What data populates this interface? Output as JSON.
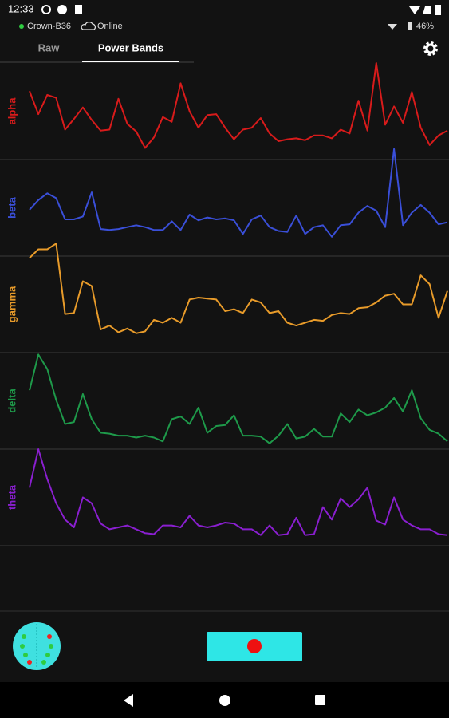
{
  "status_bar": {
    "time": "12:33",
    "battery": "46%"
  },
  "device": {
    "name": "Crown-B36",
    "status": "Online"
  },
  "tabs": [
    "Raw",
    "Power Bands"
  ],
  "ylim": [
    0,
    100
  ],
  "bands": [
    {
      "label": "alpha",
      "color": "#d81b1b",
      "values": [
        71,
        47,
        67,
        64,
        31,
        42,
        54,
        41,
        30,
        31,
        63,
        37,
        29,
        12,
        23,
        44,
        39,
        79,
        50,
        33,
        46,
        47,
        33,
        21,
        31,
        33,
        43,
        27,
        19,
        21,
        22,
        20,
        25,
        25,
        22,
        31,
        27,
        61,
        30,
        100,
        36,
        55,
        38,
        70,
        33,
        15,
        25,
        30
      ]
    },
    {
      "label": "beta",
      "color": "#3a4fd8",
      "values": [
        48,
        58,
        65,
        60,
        38,
        38,
        41,
        66,
        28,
        27,
        28,
        30,
        32,
        30,
        27,
        27,
        36,
        27,
        43,
        37,
        40,
        38,
        39,
        37,
        23,
        38,
        42,
        30,
        26,
        25,
        42,
        23,
        30,
        32,
        20,
        32,
        33,
        45,
        52,
        47,
        30,
        111,
        32,
        45,
        53,
        45,
        33,
        35
      ]
    },
    {
      "label": "gamma",
      "color": "#e89b2a",
      "values": [
        98,
        107,
        107,
        113,
        40,
        41,
        74,
        69,
        24,
        28,
        21,
        25,
        20,
        22,
        34,
        31,
        36,
        31,
        55,
        57,
        56,
        55,
        43,
        45,
        41,
        55,
        52,
        41,
        43,
        31,
        28,
        31,
        34,
        33,
        39,
        41,
        40,
        46,
        47,
        52,
        59,
        61,
        50,
        50,
        80,
        71,
        36,
        64
      ]
    },
    {
      "label": "delta",
      "color": "#1e9a4a",
      "values": [
        61,
        98,
        83,
        51,
        26,
        28,
        57,
        31,
        17,
        16,
        14,
        14,
        12,
        14,
        12,
        8,
        31,
        34,
        26,
        43,
        17,
        24,
        25,
        35,
        14,
        14,
        13,
        6,
        14,
        26,
        11,
        13,
        21,
        13,
        13,
        37,
        28,
        41,
        35,
        38,
        43,
        53,
        39,
        61,
        32,
        20,
        16,
        8
      ]
    },
    {
      "label": "theta",
      "color": "#8a1fd0",
      "values": [
        60,
        100,
        69,
        44,
        27,
        19,
        50,
        44,
        23,
        17,
        19,
        21,
        17,
        13,
        12,
        21,
        21,
        19,
        31,
        21,
        19,
        21,
        24,
        23,
        17,
        17,
        11,
        21,
        11,
        12,
        29,
        11,
        12,
        40,
        27,
        49,
        40,
        48,
        60,
        26,
        22,
        50,
        27,
        21,
        17,
        17,
        12,
        11
      ]
    }
  ]
}
